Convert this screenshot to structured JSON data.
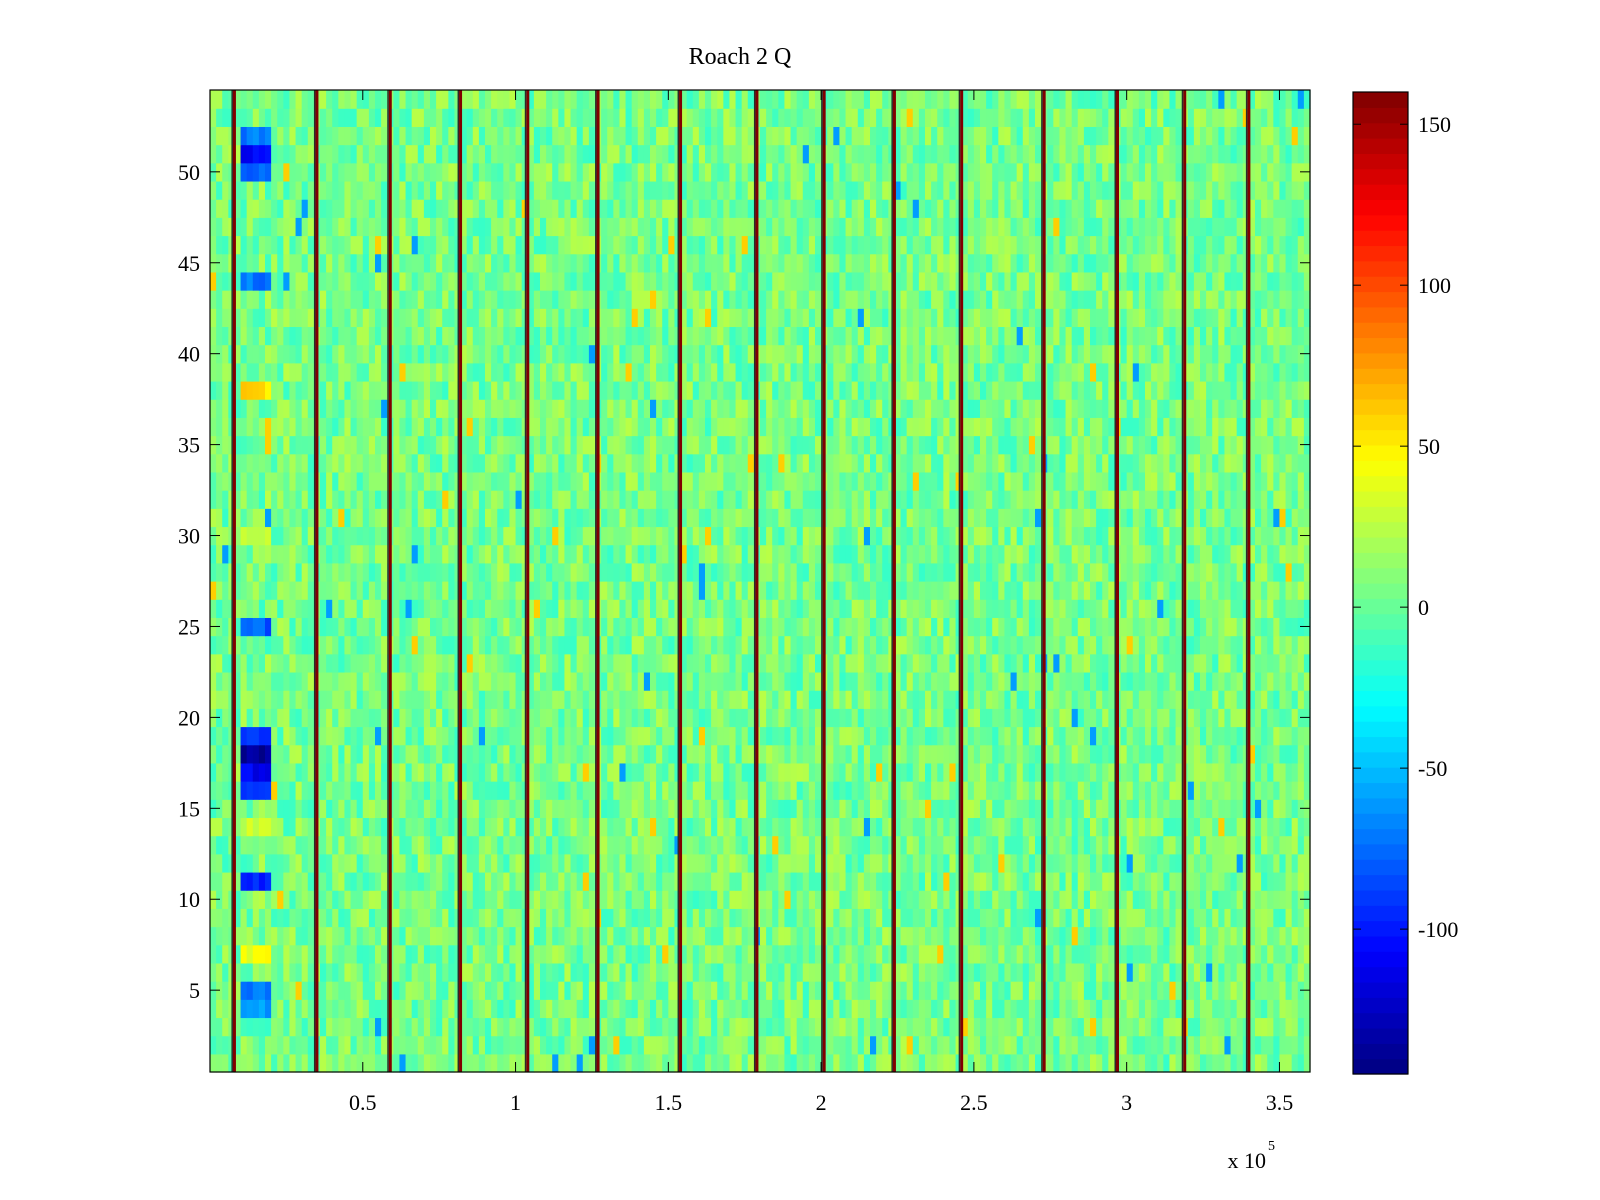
{
  "chart_data": {
    "type": "heatmap",
    "title": "Roach 2 Q",
    "xlabel": "",
    "ylabel": "",
    "x_exponent_label": "x 10",
    "x_exponent_power": "5",
    "xlim": [
      0.0,
      3.6
    ],
    "ylim": [
      0.5,
      54.5
    ],
    "x_ticks": [
      0.5,
      1.0,
      1.5,
      2.0,
      2.5,
      3.0,
      3.5
    ],
    "x_tick_labels": [
      "0.5",
      "1",
      "1.5",
      "2",
      "2.5",
      "3",
      "3.5"
    ],
    "y_ticks": [
      5,
      10,
      15,
      20,
      25,
      30,
      35,
      40,
      45,
      50
    ],
    "y_tick_labels": [
      "5",
      "10",
      "15",
      "20",
      "25",
      "30",
      "35",
      "40",
      "45",
      "50"
    ],
    "rows": 54,
    "grid": false,
    "colormap": "jet",
    "background_value_range": [
      -15,
      25
    ],
    "vertical_stripes_x": [
      0.08,
      0.35,
      0.59,
      0.82,
      1.04,
      1.27,
      1.54,
      1.79,
      2.01,
      2.24,
      2.46,
      2.73,
      2.97,
      3.19,
      3.4
    ],
    "stripe_value": 160,
    "anomaly_band_x": [
      0.1,
      0.2
    ],
    "anomalies": [
      {
        "row": 51,
        "value": -110
      },
      {
        "row": 50,
        "value": -80
      },
      {
        "row": 52,
        "value": -70
      },
      {
        "row": 44,
        "value": -70
      },
      {
        "row": 38,
        "value": 55
      },
      {
        "row": 30,
        "value": 30
      },
      {
        "row": 25,
        "value": -80
      },
      {
        "row": 19,
        "value": -90
      },
      {
        "row": 18,
        "value": -140
      },
      {
        "row": 17,
        "value": -110
      },
      {
        "row": 16,
        "value": -90
      },
      {
        "row": 14,
        "value": 30
      },
      {
        "row": 11,
        "value": -100
      },
      {
        "row": 7,
        "value": 40
      },
      {
        "row": 5,
        "value": -70
      },
      {
        "row": 4,
        "value": -60
      }
    ],
    "colorbar": {
      "range": [
        -145,
        160
      ],
      "ticks": [
        -100,
        -50,
        0,
        50,
        100,
        150
      ],
      "tick_labels": [
        "-100",
        "-50",
        "0",
        "50",
        "100",
        "150"
      ],
      "placement": "right"
    }
  }
}
